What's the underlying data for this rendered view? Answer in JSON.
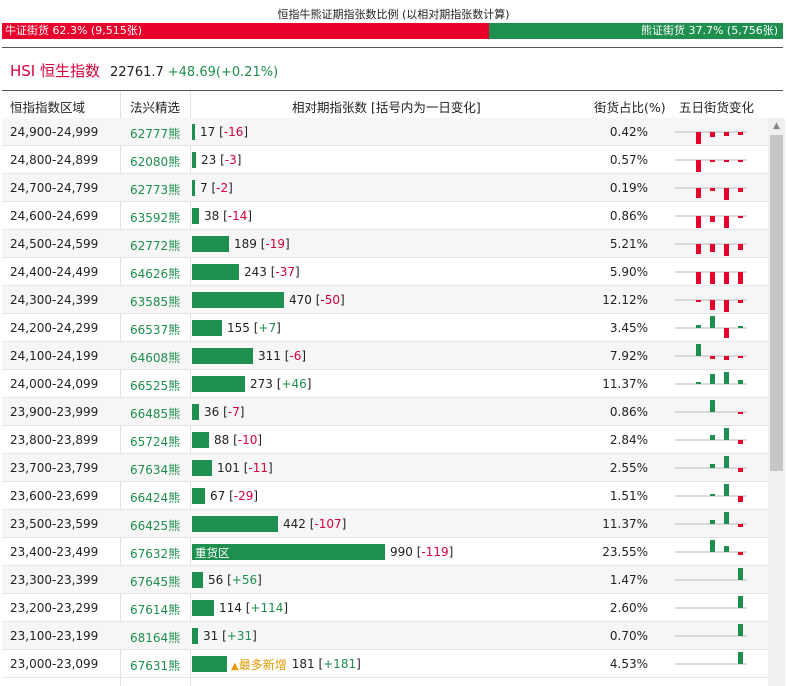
{
  "header": {
    "title": "恒指牛熊证期指张数比例 (以相对期指张数计算)",
    "bull_label": "牛证街货 62.3% (9,515张)",
    "bull_ratio": 0.623,
    "bear_label": "熊证街货 37.7% (5,756张)",
    "bear_ratio": 0.377
  },
  "index": {
    "name": "HSI 恒生指数",
    "price": "22761.7",
    "change": "+48.69(+0.21%)"
  },
  "columns": {
    "range": "恒指指数区域",
    "pick": "法兴精选",
    "contracts": "相对期指张数 [括号内为一日变化]",
    "share": "街货占比(%)",
    "five_day": "五日街货变化"
  },
  "colors": {
    "bull_red": "#e8002d",
    "bear_green": "#1e8f4e",
    "tag_orange": "#e39b00"
  },
  "rows": [
    {
      "range": "24,900-24,999",
      "code": "62777",
      "suffix": "熊",
      "count": 17,
      "count_text": "17",
      "change": "-16",
      "share": "0.42%",
      "trend": [
        -12,
        -5,
        -4,
        -3
      ]
    },
    {
      "range": "24,800-24,899",
      "code": "62080",
      "suffix": "熊",
      "count": 23,
      "count_text": "23",
      "change": "-3",
      "share": "0.57%",
      "trend": [
        -12,
        -2,
        -2,
        -2
      ]
    },
    {
      "range": "24,700-24,799",
      "code": "62773",
      "suffix": "熊",
      "count": 7,
      "count_text": "7",
      "change": "-2",
      "share": "0.19%",
      "trend": [
        -10,
        -3,
        -12,
        -4
      ]
    },
    {
      "range": "24,600-24,699",
      "code": "63592",
      "suffix": "熊",
      "count": 38,
      "count_text": "38",
      "change": "-14",
      "share": "0.86%",
      "trend": [
        -12,
        -6,
        -12,
        -2
      ]
    },
    {
      "range": "24,500-24,599",
      "code": "62772",
      "suffix": "熊",
      "count": 189,
      "count_text": "189",
      "change": "-19",
      "share": "5.21%",
      "trend": [
        -10,
        -8,
        -12,
        -6
      ]
    },
    {
      "range": "24,400-24,499",
      "code": "64626",
      "suffix": "熊",
      "count": 243,
      "count_text": "243",
      "change": "-37",
      "share": "5.90%",
      "trend": [
        -12,
        -12,
        -12,
        -12
      ]
    },
    {
      "range": "24,300-24,399",
      "code": "63585",
      "suffix": "熊",
      "count": 470,
      "count_text": "470",
      "change": "-50",
      "share": "12.12%",
      "trend": [
        -2,
        -10,
        -12,
        -3
      ]
    },
    {
      "range": "24,200-24,299",
      "code": "66537",
      "suffix": "熊",
      "count": 155,
      "count_text": "155",
      "change": "+7",
      "share": "3.45%",
      "trend": [
        3,
        12,
        -10,
        2
      ]
    },
    {
      "range": "24,100-24,199",
      "code": "64608",
      "suffix": "熊",
      "count": 311,
      "count_text": "311",
      "change": "-6",
      "share": "7.92%",
      "trend": [
        12,
        -3,
        -4,
        -2
      ]
    },
    {
      "range": "24,000-24,099",
      "code": "66525",
      "suffix": "熊",
      "count": 273,
      "count_text": "273",
      "change": "+46",
      "share": "11.37%",
      "trend": [
        2,
        10,
        12,
        4
      ]
    },
    {
      "range": "23,900-23,999",
      "code": "66485",
      "suffix": "熊",
      "count": 36,
      "count_text": "36",
      "change": "-7",
      "share": "0.86%",
      "trend": [
        0,
        12,
        0,
        -2
      ]
    },
    {
      "range": "23,800-23,899",
      "code": "65724",
      "suffix": "熊",
      "count": 88,
      "count_text": "88",
      "change": "-10",
      "share": "2.84%",
      "trend": [
        0,
        5,
        12,
        -4
      ]
    },
    {
      "range": "23,700-23,799",
      "code": "67634",
      "suffix": "熊",
      "count": 101,
      "count_text": "101",
      "change": "-11",
      "share": "2.55%",
      "trend": [
        0,
        4,
        12,
        -4
      ]
    },
    {
      "range": "23,600-23,699",
      "code": "66424",
      "suffix": "熊",
      "count": 67,
      "count_text": "67",
      "change": "-29",
      "share": "1.51%",
      "trend": [
        0,
        2,
        12,
        -6
      ]
    },
    {
      "range": "23,500-23,599",
      "code": "66425",
      "suffix": "熊",
      "count": 442,
      "count_text": "442",
      "change": "-107",
      "share": "11.37%",
      "trend": [
        0,
        4,
        12,
        -3
      ]
    },
    {
      "range": "23,400-23,499",
      "code": "67632",
      "suffix": "熊",
      "count": 990,
      "count_text": "990",
      "change": "-119",
      "share": "23.55%",
      "trend": [
        0,
        12,
        6,
        -3
      ],
      "bar_label": "重货区"
    },
    {
      "range": "23,300-23,399",
      "code": "67645",
      "suffix": "熊",
      "count": 56,
      "count_text": "56",
      "change": "+56",
      "share": "1.47%",
      "trend": [
        0,
        0,
        0,
        12
      ]
    },
    {
      "range": "23,200-23,299",
      "code": "67614",
      "suffix": "熊",
      "count": 114,
      "count_text": "114",
      "change": "+114",
      "share": "2.60%",
      "trend": [
        0,
        0,
        0,
        12
      ]
    },
    {
      "range": "23,100-23,199",
      "code": "68164",
      "suffix": "熊",
      "count": 31,
      "count_text": "31",
      "change": "+31",
      "share": "0.70%",
      "trend": [
        0,
        0,
        0,
        12
      ]
    },
    {
      "range": "23,000-23,099",
      "code": "67631",
      "suffix": "熊",
      "count": 181,
      "count_text": "181",
      "change": "+181",
      "share": "4.53%",
      "trend": [
        0,
        0,
        0,
        12
      ],
      "tag": "最多新增"
    }
  ]
}
